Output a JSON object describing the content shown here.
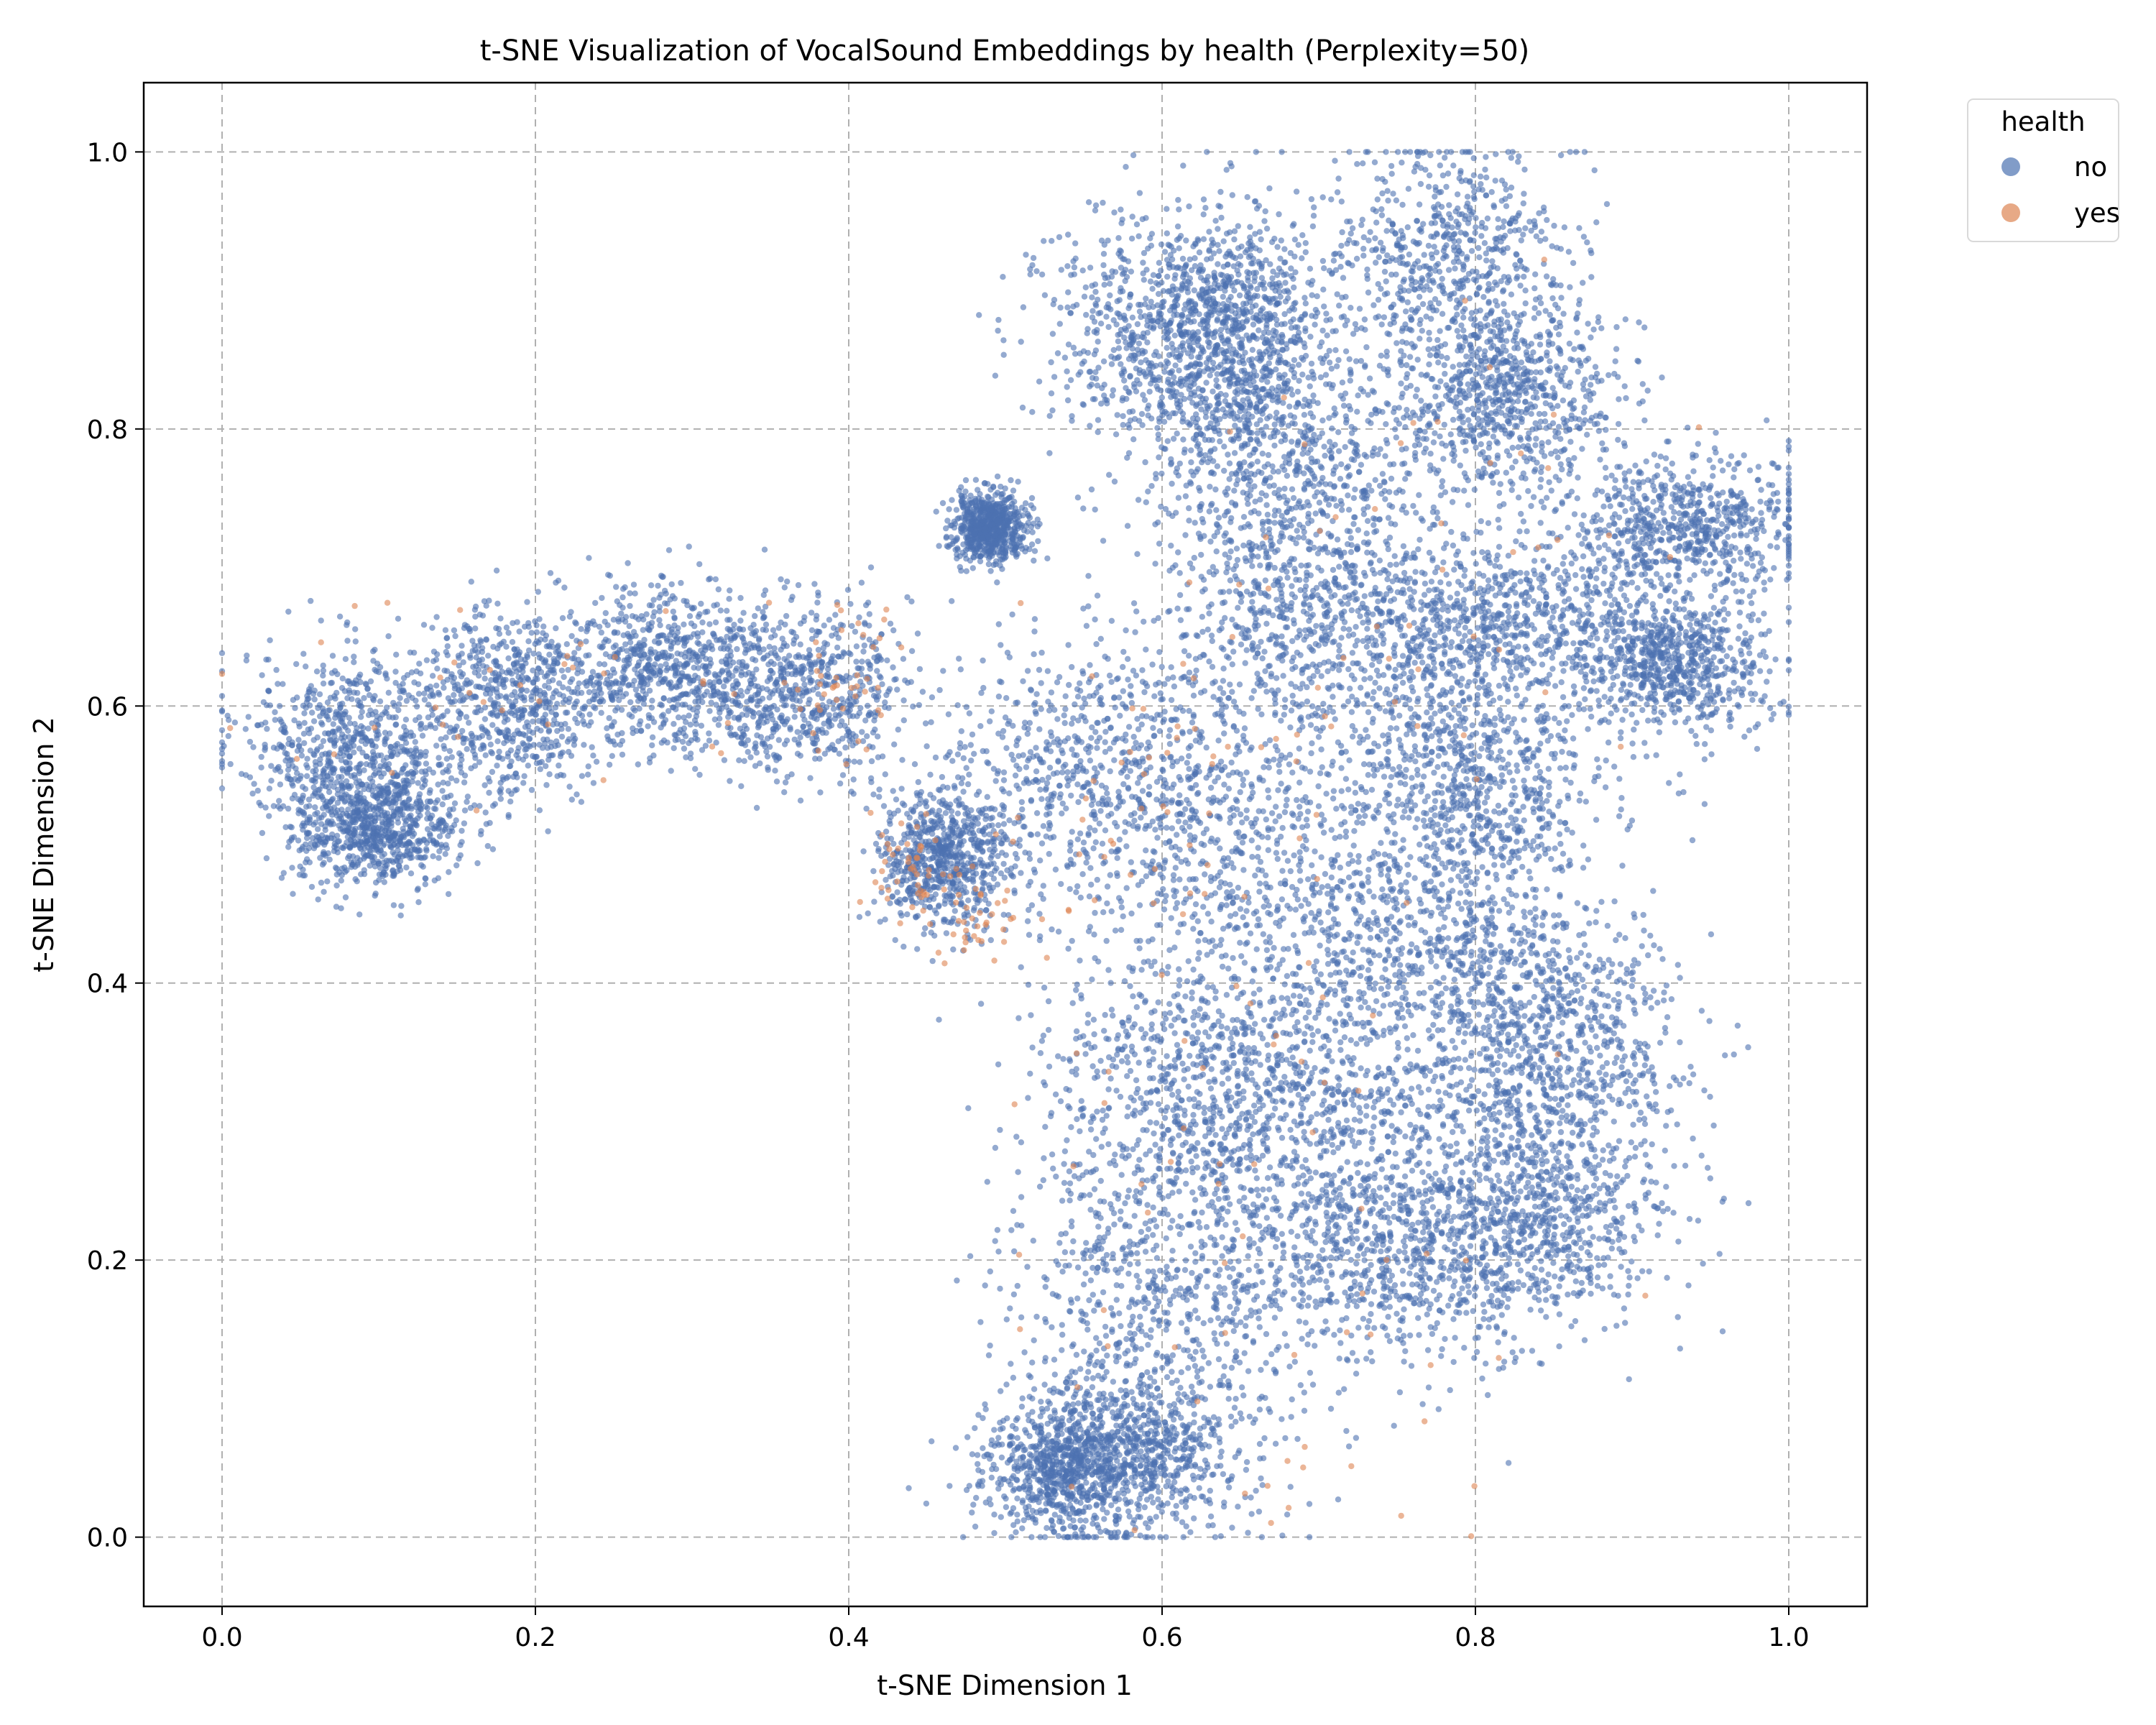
{
  "chart_data": {
    "type": "scatter",
    "title": "t-SNE Visualization of VocalSound Embeddings by health (Perplexity=50)",
    "xlabel": "t-SNE Dimension 1",
    "ylabel": "t-SNE Dimension 2",
    "xlim": [
      -0.05,
      1.05
    ],
    "ylim": [
      -0.05,
      1.05
    ],
    "xticks": [
      "0.0",
      "0.2",
      "0.4",
      "0.6",
      "0.8",
      "1.0"
    ],
    "yticks": [
      "0.0",
      "0.2",
      "0.4",
      "0.6",
      "0.8",
      "1.0"
    ],
    "grid": true,
    "legend": {
      "title": "health",
      "placement": "outside-top-right",
      "entries": [
        "no",
        "yes"
      ]
    },
    "colors": {
      "no": "#4c72b0",
      "yes": "#dd8452"
    },
    "point_alpha": 0.6,
    "series": [
      {
        "name": "no",
        "clusters": [
          {
            "x": 0.08,
            "y": 0.57,
            "sx": 0.035,
            "sy": 0.035
          },
          {
            "x": 0.1,
            "y": 0.51,
            "sx": 0.025,
            "sy": 0.02
          },
          {
            "x": 0.18,
            "y": 0.6,
            "sx": 0.035,
            "sy": 0.035
          },
          {
            "x": 0.28,
            "y": 0.63,
            "sx": 0.035,
            "sy": 0.03
          },
          {
            "x": 0.37,
            "y": 0.61,
            "sx": 0.035,
            "sy": 0.03
          },
          {
            "x": 0.49,
            "y": 0.73,
            "sx": 0.012,
            "sy": 0.012
          },
          {
            "x": 0.56,
            "y": 0.55,
            "sx": 0.05,
            "sy": 0.05
          },
          {
            "x": 0.46,
            "y": 0.49,
            "sx": 0.02,
            "sy": 0.025
          },
          {
            "x": 0.6,
            "y": 0.87,
            "sx": 0.04,
            "sy": 0.04
          },
          {
            "x": 0.65,
            "y": 0.87,
            "sx": 0.03,
            "sy": 0.04
          },
          {
            "x": 0.68,
            "y": 0.77,
            "sx": 0.05,
            "sy": 0.04
          },
          {
            "x": 0.78,
            "y": 0.92,
            "sx": 0.04,
            "sy": 0.045
          },
          {
            "x": 0.82,
            "y": 0.82,
            "sx": 0.035,
            "sy": 0.035
          },
          {
            "x": 0.93,
            "y": 0.73,
            "sx": 0.04,
            "sy": 0.025
          },
          {
            "x": 0.93,
            "y": 0.63,
            "sx": 0.03,
            "sy": 0.025
          },
          {
            "x": 0.82,
            "y": 0.66,
            "sx": 0.05,
            "sy": 0.03
          },
          {
            "x": 0.7,
            "y": 0.66,
            "sx": 0.05,
            "sy": 0.04
          },
          {
            "x": 0.66,
            "y": 0.5,
            "sx": 0.06,
            "sy": 0.06
          },
          {
            "x": 0.78,
            "y": 0.42,
            "sx": 0.05,
            "sy": 0.05
          },
          {
            "x": 0.85,
            "y": 0.35,
            "sx": 0.04,
            "sy": 0.05
          },
          {
            "x": 0.84,
            "y": 0.23,
            "sx": 0.04,
            "sy": 0.04
          },
          {
            "x": 0.72,
            "y": 0.3,
            "sx": 0.06,
            "sy": 0.06
          },
          {
            "x": 0.62,
            "y": 0.33,
            "sx": 0.05,
            "sy": 0.05
          },
          {
            "x": 0.6,
            "y": 0.17,
            "sx": 0.05,
            "sy": 0.06
          },
          {
            "x": 0.58,
            "y": 0.06,
            "sx": 0.04,
            "sy": 0.03
          },
          {
            "x": 0.54,
            "y": 0.05,
            "sx": 0.025,
            "sy": 0.025
          },
          {
            "x": 0.75,
            "y": 0.2,
            "sx": 0.05,
            "sy": 0.04
          },
          {
            "x": 0.8,
            "y": 0.55,
            "sx": 0.04,
            "sy": 0.04
          }
        ]
      },
      {
        "name": "yes",
        "clusters": [
          {
            "x": 0.48,
            "y": 0.45,
            "sx": 0.02,
            "sy": 0.015
          },
          {
            "x": 0.44,
            "y": 0.48,
            "sx": 0.012,
            "sy": 0.015
          },
          {
            "x": 0.7,
            "y": 0.38,
            "sx": 0.1,
            "sy": 0.15
          },
          {
            "x": 0.65,
            "y": 0.15,
            "sx": 0.08,
            "sy": 0.08
          },
          {
            "x": 0.8,
            "y": 0.7,
            "sx": 0.08,
            "sy": 0.1
          },
          {
            "x": 0.62,
            "y": 0.55,
            "sx": 0.06,
            "sy": 0.06
          },
          {
            "x": 0.2,
            "y": 0.6,
            "sx": 0.1,
            "sy": 0.04
          },
          {
            "x": 0.4,
            "y": 0.62,
            "sx": 0.02,
            "sy": 0.03
          }
        ]
      }
    ]
  }
}
